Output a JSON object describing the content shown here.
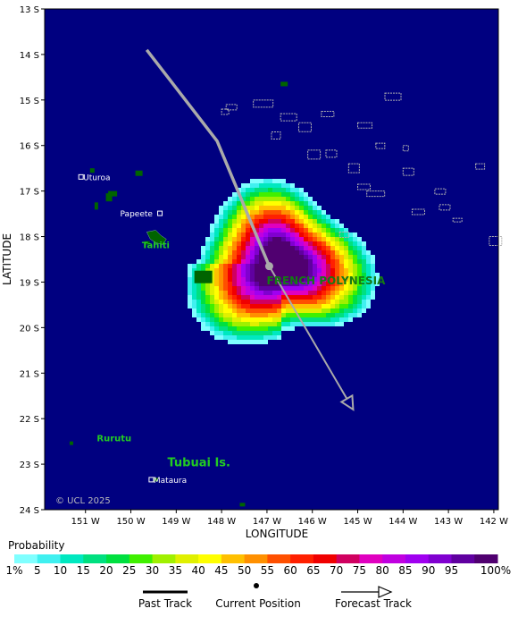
{
  "map": {
    "lon_range": [
      151.9,
      141.9
    ],
    "lat_range": [
      13,
      24
    ],
    "lon_ticks": [
      "151 W",
      "150 W",
      "149 W",
      "148 W",
      "147 W",
      "146 W",
      "145 W",
      "144 W",
      "143 W",
      "142 W"
    ],
    "lat_ticks": [
      "13 S",
      "14 S",
      "15 S",
      "16 S",
      "17 S",
      "18 S",
      "19 S",
      "20 S",
      "21 S",
      "22 S",
      "23 S",
      "24 S"
    ],
    "xlabel": "LONGITUDE",
    "ylabel": "LATITUDE",
    "ocean_color": "#000080",
    "land_color": "#006400",
    "copyright": "© UCL 2025"
  },
  "labels": {
    "places": [
      {
        "name": "Uturoa"
      },
      {
        "name": "Papeete"
      },
      {
        "name": "Mataura"
      }
    ],
    "regions": [
      {
        "name": "Tahiti",
        "size": "small"
      },
      {
        "name": "Rurutu",
        "size": "small"
      },
      {
        "name": "Tubuai Is.",
        "size": "large"
      },
      {
        "name": "FRENCH POLYNESIA",
        "size": "country"
      }
    ]
  },
  "track": {
    "past": [
      [
        149.65,
        13.9
      ],
      [
        148.1,
        15.9
      ],
      [
        146.95,
        18.65
      ]
    ],
    "forecast_start": [
      146.95,
      18.65
    ],
    "forecast_end": [
      145.1,
      21.8
    ],
    "current_position": [
      146.95,
      18.65
    ],
    "track_color": "#aaaaaa"
  },
  "probability": {
    "title": "Probability",
    "center": [
      146.7,
      18.6
    ],
    "levels": [
      "1%",
      "5",
      "10",
      "15",
      "20",
      "25",
      "30",
      "35",
      "40",
      "45",
      "50",
      "55",
      "60",
      "65",
      "70",
      "75",
      "80",
      "85",
      "90",
      "95",
      "100%"
    ],
    "colors": [
      "#80ffff",
      "#40f0f0",
      "#00e8c0",
      "#00e080",
      "#00e040",
      "#40f000",
      "#a0f000",
      "#e0f000",
      "#ffff00",
      "#ffc000",
      "#ff9000",
      "#ff5000",
      "#ff2000",
      "#f00000",
      "#d00060",
      "#e000c0",
      "#c000e0",
      "#a000f0",
      "#8000d0",
      "#6000a0",
      "#500070"
    ]
  },
  "legend": {
    "past_track": "Past Track",
    "current_position": "Current Position",
    "forecast_track": "Forecast Track"
  }
}
